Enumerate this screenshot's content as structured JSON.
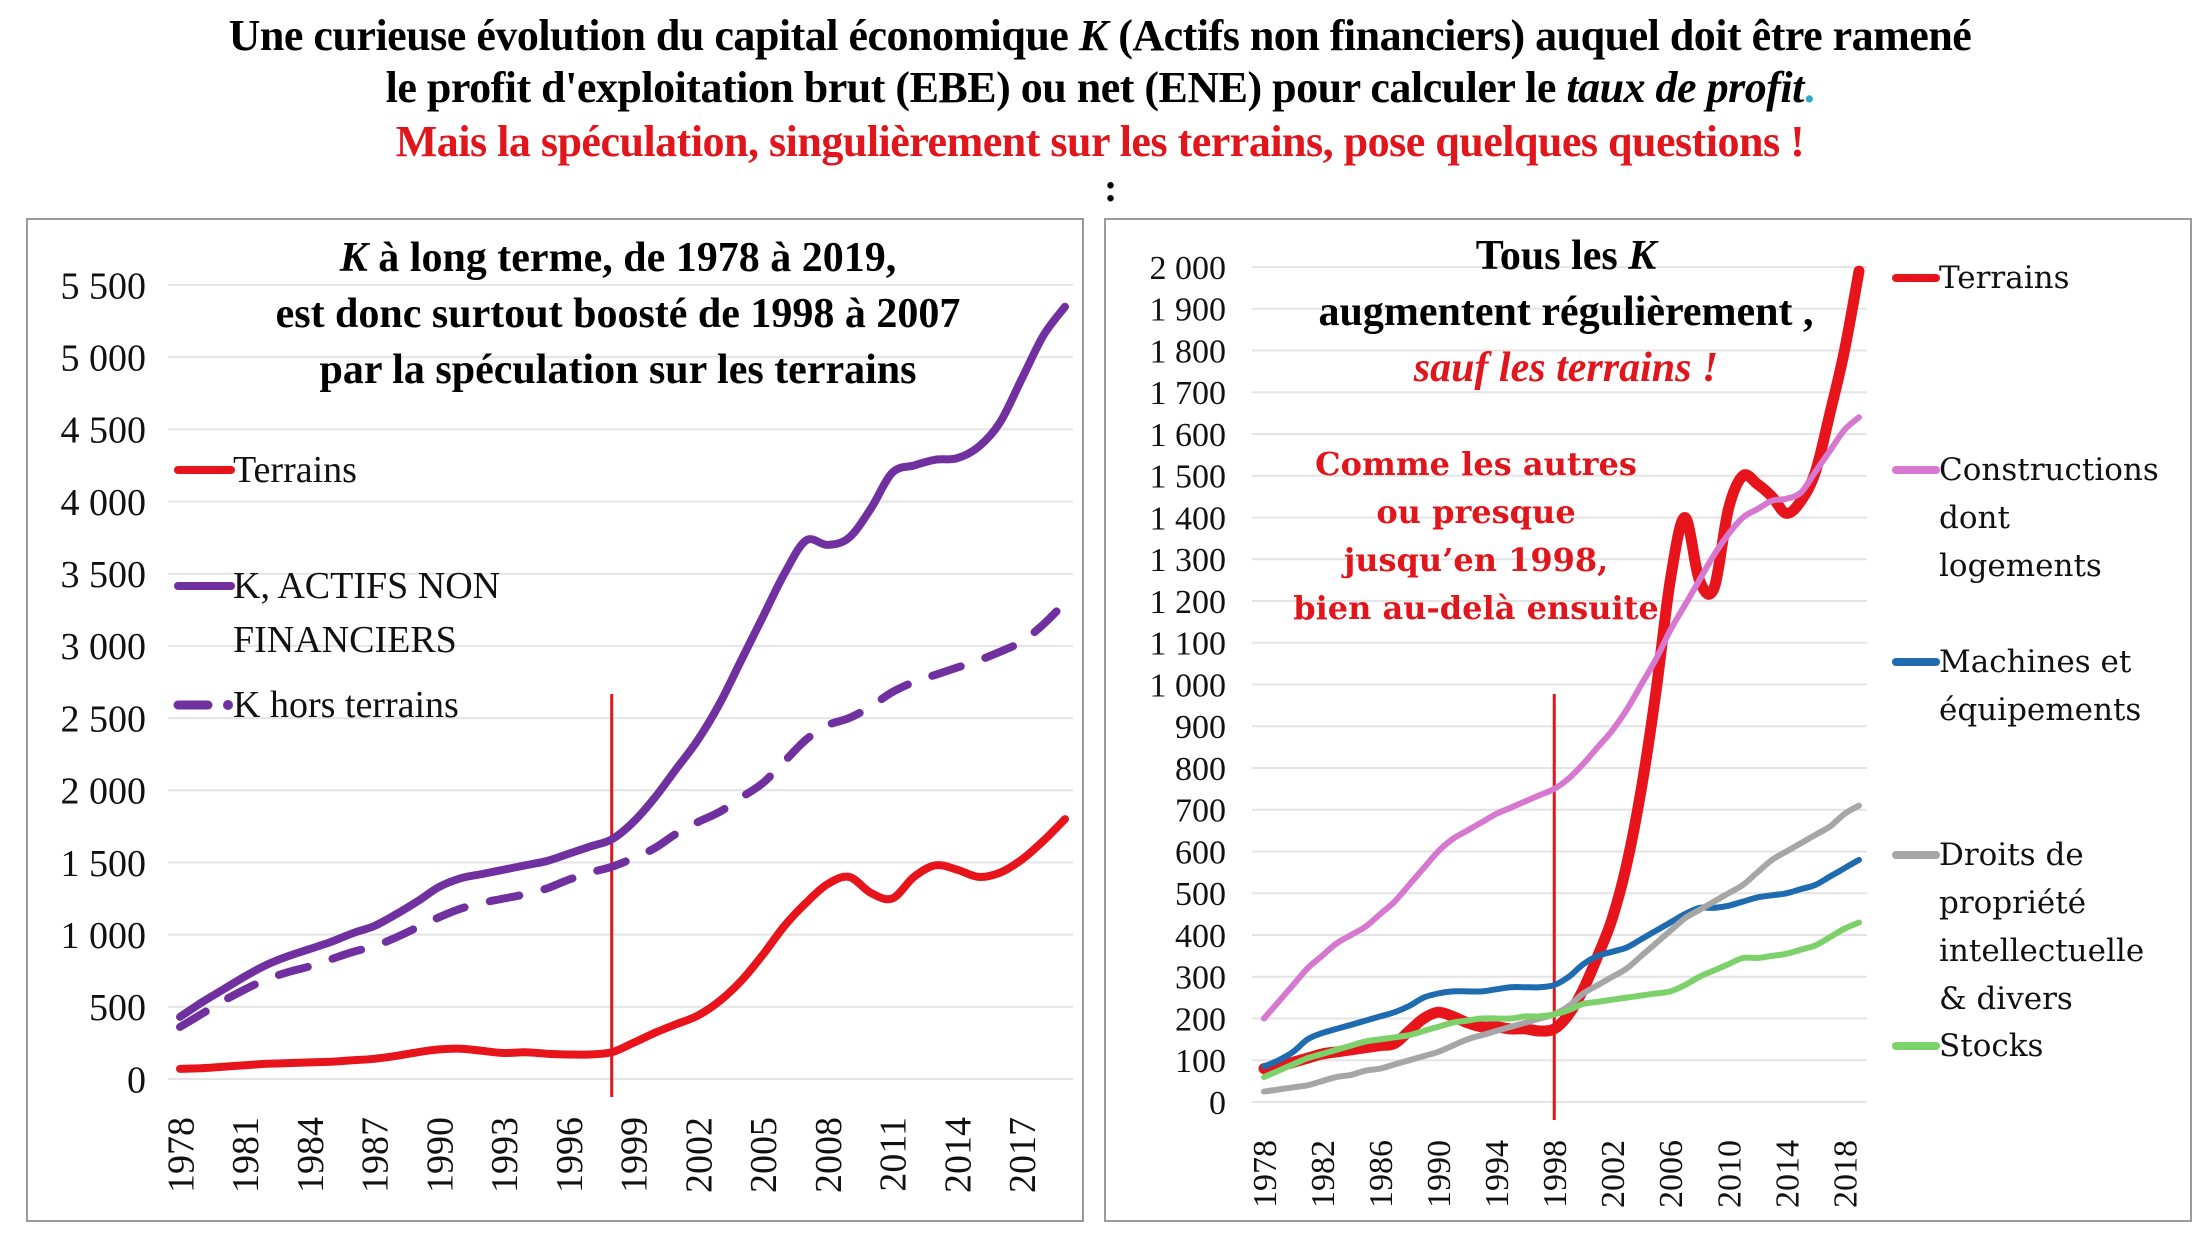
{
  "header": {
    "line1": "Une curieuse évolution du capital économique K (Actifs non financiers) auquel doit être ramené",
    "line1_parts": [
      "Une curieuse évolution du capital économique ",
      "K",
      " (Actifs non financiers) auquel doit être ramené"
    ],
    "line2_parts": [
      "le profit d'exploitation brut (EBE) ou net (ENE) pour calculer le ",
      "taux de profit",
      "."
    ],
    "line3": "Mais la spéculation, singulièrement sur les terrains, pose quelques questions !",
    "colon": ":"
  },
  "colors": {
    "terrains": "#e8141b",
    "k_total": "#7030a0",
    "k_hors_terrains": "#7030a0",
    "constructions": "#d678d0",
    "machines": "#1f6bb0",
    "droits": "#a6a6a6",
    "stocks": "#7dd16b",
    "marker_1998": "#e0161c",
    "accent_red": "#e0161c"
  },
  "chart_data": [
    {
      "type": "line",
      "id": "left",
      "title_parts": [
        "K",
        " à long terme, de 1978 à 2019,"
      ],
      "title_line2": "est donc surtout boosté de 1998 à 2007",
      "title_line3": "par la spéculation sur les terrains",
      "xlabel": "",
      "ylabel": "",
      "ylim": [
        0,
        5500
      ],
      "yticks": [
        0,
        500,
        1000,
        1500,
        2000,
        2500,
        3000,
        3500,
        4000,
        4500,
        5000,
        5500
      ],
      "ytick_labels": [
        "0",
        "500",
        "1 000",
        "1 500",
        "2 000",
        "2 500",
        "3 000",
        "3 500",
        "4 000",
        "4 500",
        "5 000",
        "5 500"
      ],
      "xlim": [
        1978,
        2019
      ],
      "xticks": [
        1978,
        1981,
        1984,
        1987,
        1990,
        1993,
        1996,
        1999,
        2002,
        2005,
        2008,
        2011,
        2014,
        2017
      ],
      "grid": true,
      "legend_position": "top-left",
      "vline_year": 1998,
      "x": [
        1978,
        1979,
        1980,
        1981,
        1982,
        1983,
        1984,
        1985,
        1986,
        1987,
        1988,
        1989,
        1990,
        1991,
        1992,
        1993,
        1994,
        1995,
        1996,
        1997,
        1998,
        1999,
        2000,
        2001,
        2002,
        2003,
        2004,
        2005,
        2006,
        2007,
        2008,
        2009,
        2010,
        2011,
        2012,
        2013,
        2014,
        2015,
        2016,
        2017,
        2018,
        2019
      ],
      "series": [
        {
          "name": "Terrains",
          "style": "solid",
          "color_key": "terrains",
          "values": [
            70,
            75,
            85,
            95,
            105,
            110,
            115,
            120,
            130,
            140,
            160,
            185,
            205,
            210,
            195,
            180,
            185,
            175,
            170,
            170,
            185,
            250,
            320,
            380,
            440,
            540,
            680,
            860,
            1060,
            1220,
            1350,
            1400,
            1290,
            1250,
            1400,
            1480,
            1450,
            1400,
            1430,
            1520,
            1650,
            1800
          ]
        },
        {
          "name": "K, ACTIFS NON FINANCIERS",
          "style": "solid",
          "color_key": "k_total",
          "values": [
            430,
            530,
            620,
            710,
            790,
            850,
            900,
            950,
            1010,
            1060,
            1140,
            1230,
            1330,
            1390,
            1420,
            1450,
            1480,
            1510,
            1560,
            1610,
            1660,
            1780,
            1950,
            2150,
            2350,
            2600,
            2900,
            3200,
            3500,
            3730,
            3700,
            3750,
            3950,
            4200,
            4250,
            4290,
            4300,
            4380,
            4550,
            4850,
            5150,
            5350
          ]
        },
        {
          "name": "K hors terrains",
          "style": "dashed",
          "color_key": "k_hors_terrains",
          "values": [
            360,
            450,
            540,
            620,
            690,
            740,
            780,
            830,
            880,
            920,
            980,
            1050,
            1120,
            1180,
            1220,
            1250,
            1280,
            1320,
            1380,
            1430,
            1470,
            1530,
            1600,
            1700,
            1780,
            1850,
            1950,
            2050,
            2200,
            2350,
            2450,
            2500,
            2580,
            2680,
            2750,
            2800,
            2850,
            2900,
            2960,
            3030,
            3150,
            3300
          ]
        }
      ]
    },
    {
      "type": "line",
      "id": "right",
      "title_line1_parts": [
        "Tous les ",
        "K"
      ],
      "title_line2": "augmentent régulièrement ,",
      "title_line3": "sauf les terrains !",
      "annotation": [
        "Comme les autres",
        "ou presque",
        "jusqu’en 1998,",
        "bien au-delà ensuite"
      ],
      "xlabel": "",
      "ylabel": "",
      "ylim": [
        0,
        2000
      ],
      "yticks": [
        0,
        100,
        200,
        300,
        400,
        500,
        600,
        700,
        800,
        900,
        1000,
        1100,
        1200,
        1300,
        1400,
        1500,
        1600,
        1700,
        1800,
        1900,
        2000
      ],
      "ytick_labels": [
        "0",
        "100",
        "200",
        "300",
        "400",
        "500",
        "600",
        "700",
        "800",
        "900",
        "1 000",
        "1 100",
        "1 200",
        "1 300",
        "1 400",
        "1 500",
        "1 600",
        "1 700",
        "1 800",
        "1 900",
        "2 000"
      ],
      "xlim": [
        1978,
        2019
      ],
      "xticks": [
        1978,
        1982,
        1986,
        1990,
        1994,
        1998,
        2002,
        2006,
        2010,
        2014,
        2018
      ],
      "grid": true,
      "legend_position": "right",
      "vline_year": 1998,
      "x": [
        1978,
        1979,
        1980,
        1981,
        1982,
        1983,
        1984,
        1985,
        1986,
        1987,
        1988,
        1989,
        1990,
        1991,
        1992,
        1993,
        1994,
        1995,
        1996,
        1997,
        1998,
        1999,
        2000,
        2001,
        2002,
        2003,
        2004,
        2005,
        2006,
        2007,
        2008,
        2009,
        2010,
        2011,
        2012,
        2013,
        2014,
        2015,
        2016,
        2017,
        2018,
        2019
      ],
      "series": [
        {
          "name": "Terrains",
          "label_lines": [
            "Terrains"
          ],
          "color_key": "terrains",
          "values": [
            80,
            85,
            95,
            105,
            115,
            120,
            125,
            130,
            135,
            140,
            170,
            200,
            215,
            205,
            190,
            180,
            180,
            175,
            175,
            170,
            175,
            210,
            270,
            350,
            440,
            570,
            750,
            980,
            1250,
            1400,
            1250,
            1230,
            1420,
            1500,
            1480,
            1450,
            1410,
            1440,
            1510,
            1650,
            1800,
            1990
          ]
        },
        {
          "name": "Constructions dont logements",
          "label_lines": [
            "Constructions",
            "dont",
            "logements"
          ],
          "color_key": "constructions",
          "values": [
            200,
            240,
            280,
            320,
            350,
            380,
            400,
            420,
            450,
            480,
            520,
            560,
            600,
            630,
            650,
            670,
            690,
            705,
            720,
            735,
            750,
            775,
            810,
            850,
            890,
            940,
            1000,
            1060,
            1130,
            1190,
            1250,
            1310,
            1360,
            1400,
            1420,
            1440,
            1445,
            1460,
            1510,
            1560,
            1610,
            1640
          ]
        },
        {
          "name": "Machines et équipements",
          "label_lines": [
            "Machines et",
            "équipements"
          ],
          "color_key": "machines",
          "values": [
            85,
            100,
            120,
            150,
            165,
            175,
            185,
            195,
            205,
            215,
            230,
            250,
            260,
            265,
            265,
            265,
            270,
            275,
            275,
            275,
            280,
            300,
            330,
            350,
            360,
            370,
            390,
            410,
            430,
            450,
            465,
            465,
            470,
            480,
            490,
            495,
            500,
            510,
            520,
            540,
            560,
            580
          ]
        },
        {
          "name": "Droits de propriété intellectuelle & divers",
          "label_lines": [
            "Droits de",
            "propriété",
            "intellectuelle",
            "& divers"
          ],
          "color_key": "droits",
          "values": [
            25,
            30,
            35,
            40,
            50,
            60,
            65,
            75,
            80,
            90,
            100,
            110,
            120,
            135,
            150,
            160,
            170,
            180,
            190,
            200,
            210,
            230,
            260,
            280,
            300,
            320,
            350,
            380,
            410,
            440,
            460,
            480,
            500,
            520,
            550,
            580,
            600,
            620,
            640,
            660,
            690,
            710
          ]
        },
        {
          "name": "Stocks",
          "label_lines": [
            "Stocks"
          ],
          "color_key": "stocks",
          "values": [
            60,
            75,
            90,
            105,
            115,
            125,
            135,
            145,
            150,
            155,
            160,
            170,
            180,
            190,
            195,
            200,
            200,
            200,
            205,
            205,
            210,
            220,
            235,
            240,
            245,
            250,
            255,
            260,
            265,
            280,
            300,
            315,
            330,
            345,
            345,
            350,
            355,
            365,
            375,
            395,
            415,
            430
          ]
        }
      ]
    }
  ]
}
